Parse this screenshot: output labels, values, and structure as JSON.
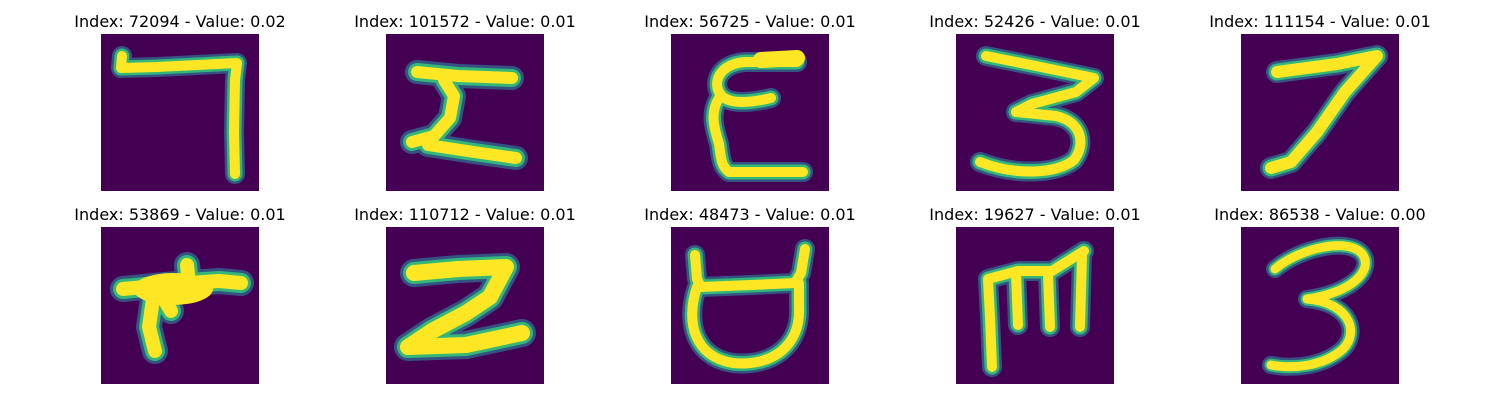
{
  "colors": {
    "background": "#440154",
    "ink": "#fde725",
    "edge_dark": "#31688e",
    "edge_light": "#35b779",
    "title_text": "#000000"
  },
  "panels": [
    {
      "title": "Index: 72094 - Value: 0.02",
      "glyph": "seven-shaped stroke"
    },
    {
      "title": "Index: 101572 - Value: 0.01",
      "glyph": "sigma-like shape"
    },
    {
      "title": "Index: 56725 - Value: 0.01",
      "glyph": "epsilon-like shape"
    },
    {
      "title": "Index: 52426 - Value: 0.01",
      "glyph": "digit three"
    },
    {
      "title": "Index: 111154 - Value: 0.01",
      "glyph": "digit seven"
    },
    {
      "title": "Index: 53869 - Value: 0.01",
      "glyph": "blob with branches"
    },
    {
      "title": "Index: 110712 - Value: 0.01",
      "glyph": "z-like shape"
    },
    {
      "title": "Index: 48473 - Value: 0.01",
      "glyph": "cup-like shape"
    },
    {
      "title": "Index: 19627 - Value: 0.01",
      "glyph": "m-like shape"
    },
    {
      "title": "Index: 86538 - Value: 0.00",
      "glyph": "digit three"
    }
  ]
}
